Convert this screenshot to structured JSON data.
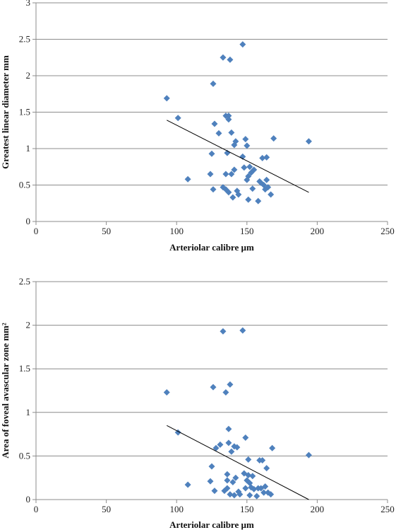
{
  "chart_data": [
    {
      "type": "scatter",
      "xlabel": "Arteriolar  calibre µm",
      "ylabel": "Greatest linear  diameter  mm",
      "xlim": [
        0,
        250
      ],
      "ylim": [
        0,
        3
      ],
      "xticks": [
        0,
        50,
        100,
        150,
        200,
        250
      ],
      "yticks": [
        0,
        0.5,
        1,
        1.5,
        2,
        2.5,
        3
      ],
      "ytick_labels": [
        "0",
        "0.5",
        "1",
        "1.5",
        "2",
        "2.5",
        "3"
      ],
      "grid": "horizontal",
      "marker_color": "#4F81BD",
      "trendline": {
        "x": [
          93,
          194
        ],
        "y": [
          1.39,
          0.4
        ],
        "color": "#000000"
      },
      "points": [
        {
          "x": 93,
          "y": 1.69
        },
        {
          "x": 101,
          "y": 1.42
        },
        {
          "x": 108,
          "y": 0.58
        },
        {
          "x": 124,
          "y": 0.65
        },
        {
          "x": 125,
          "y": 0.93
        },
        {
          "x": 126,
          "y": 1.89
        },
        {
          "x": 126,
          "y": 0.44
        },
        {
          "x": 127,
          "y": 1.34
        },
        {
          "x": 130,
          "y": 1.21
        },
        {
          "x": 133,
          "y": 2.25
        },
        {
          "x": 133,
          "y": 0.47
        },
        {
          "x": 135,
          "y": 1.45
        },
        {
          "x": 135,
          "y": 0.65
        },
        {
          "x": 135,
          "y": 0.44
        },
        {
          "x": 136,
          "y": 0.94
        },
        {
          "x": 137,
          "y": 1.45
        },
        {
          "x": 137,
          "y": 1.4
        },
        {
          "x": 137,
          "y": 0.4
        },
        {
          "x": 138,
          "y": 2.22
        },
        {
          "x": 139,
          "y": 1.22
        },
        {
          "x": 139,
          "y": 0.65
        },
        {
          "x": 140,
          "y": 0.33
        },
        {
          "x": 141,
          "y": 1.05
        },
        {
          "x": 141,
          "y": 0.71
        },
        {
          "x": 142,
          "y": 1.1
        },
        {
          "x": 143,
          "y": 0.42
        },
        {
          "x": 144,
          "y": 0.37
        },
        {
          "x": 147,
          "y": 2.43
        },
        {
          "x": 147,
          "y": 0.89
        },
        {
          "x": 148,
          "y": 0.74
        },
        {
          "x": 149,
          "y": 1.13
        },
        {
          "x": 150,
          "y": 1.04
        },
        {
          "x": 150,
          "y": 0.57
        },
        {
          "x": 151,
          "y": 0.62
        },
        {
          "x": 151,
          "y": 0.3
        },
        {
          "x": 152,
          "y": 0.75
        },
        {
          "x": 153,
          "y": 0.67
        },
        {
          "x": 154,
          "y": 0.45
        },
        {
          "x": 155,
          "y": 0.71
        },
        {
          "x": 158,
          "y": 0.28
        },
        {
          "x": 159,
          "y": 0.55
        },
        {
          "x": 160,
          "y": 0.53
        },
        {
          "x": 161,
          "y": 0.87
        },
        {
          "x": 162,
          "y": 0.5
        },
        {
          "x": 163,
          "y": 0.44
        },
        {
          "x": 164,
          "y": 0.88
        },
        {
          "x": 164,
          "y": 0.57
        },
        {
          "x": 165,
          "y": 0.47
        },
        {
          "x": 167,
          "y": 0.37
        },
        {
          "x": 169,
          "y": 1.14
        },
        {
          "x": 194,
          "y": 1.1
        }
      ]
    },
    {
      "type": "scatter",
      "xlabel": "Arteriolar  calibre µm",
      "ylabel": "Area of foveal avascular zone mm²",
      "xlim": [
        0,
        250
      ],
      "ylim": [
        0,
        2.5
      ],
      "xticks": [
        0,
        50,
        100,
        150,
        200,
        250
      ],
      "yticks": [
        0,
        0.5,
        1,
        1.5,
        2,
        2.5
      ],
      "ytick_labels": [
        "0",
        "0.5",
        "1",
        "1.5",
        "2",
        "2.5"
      ],
      "grid": "horizontal",
      "marker_color": "#4F81BD",
      "trendline": {
        "x": [
          93,
          194
        ],
        "y": [
          0.85,
          0.0
        ],
        "color": "#000000"
      },
      "points": [
        {
          "x": 93,
          "y": 1.23
        },
        {
          "x": 101,
          "y": 0.77
        },
        {
          "x": 108,
          "y": 0.17
        },
        {
          "x": 124,
          "y": 0.21
        },
        {
          "x": 125,
          "y": 0.38
        },
        {
          "x": 126,
          "y": 1.29
        },
        {
          "x": 127,
          "y": 0.1
        },
        {
          "x": 128,
          "y": 0.59
        },
        {
          "x": 131,
          "y": 0.63
        },
        {
          "x": 133,
          "y": 1.93
        },
        {
          "x": 134,
          "y": 0.1
        },
        {
          "x": 135,
          "y": 1.23
        },
        {
          "x": 136,
          "y": 0.13
        },
        {
          "x": 136,
          "y": 0.29
        },
        {
          "x": 136,
          "y": 0.22
        },
        {
          "x": 137,
          "y": 0.81
        },
        {
          "x": 137,
          "y": 0.65
        },
        {
          "x": 138,
          "y": 0.06
        },
        {
          "x": 138,
          "y": 1.32
        },
        {
          "x": 139,
          "y": 0.55
        },
        {
          "x": 140,
          "y": 0.2
        },
        {
          "x": 141,
          "y": 0.61
        },
        {
          "x": 141,
          "y": 0.05
        },
        {
          "x": 142,
          "y": 0.25
        },
        {
          "x": 143,
          "y": 0.6
        },
        {
          "x": 144,
          "y": 0.09
        },
        {
          "x": 145,
          "y": 0.06
        },
        {
          "x": 147,
          "y": 1.94
        },
        {
          "x": 148,
          "y": 0.3
        },
        {
          "x": 149,
          "y": 0.71
        },
        {
          "x": 149,
          "y": 0.13
        },
        {
          "x": 150,
          "y": 0.22
        },
        {
          "x": 151,
          "y": 0.46
        },
        {
          "x": 151,
          "y": 0.28
        },
        {
          "x": 152,
          "y": 0.05
        },
        {
          "x": 152,
          "y": 0.19
        },
        {
          "x": 153,
          "y": 0.14
        },
        {
          "x": 154,
          "y": 0.27
        },
        {
          "x": 155,
          "y": 0.12
        },
        {
          "x": 157,
          "y": 0.04
        },
        {
          "x": 158,
          "y": 0.13
        },
        {
          "x": 159,
          "y": 0.45
        },
        {
          "x": 160,
          "y": 0.13
        },
        {
          "x": 161,
          "y": 0.45
        },
        {
          "x": 162,
          "y": 0.08
        },
        {
          "x": 163,
          "y": 0.15
        },
        {
          "x": 164,
          "y": 0.36
        },
        {
          "x": 165,
          "y": 0.08
        },
        {
          "x": 167,
          "y": 0.06
        },
        {
          "x": 168,
          "y": 0.59
        },
        {
          "x": 194,
          "y": 0.51
        }
      ]
    }
  ]
}
